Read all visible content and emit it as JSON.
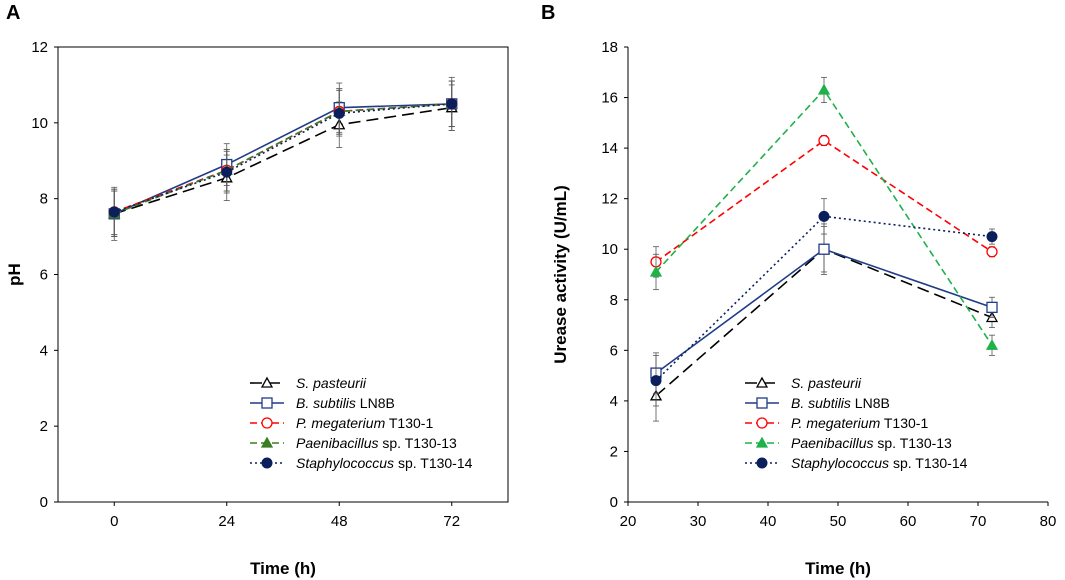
{
  "panels": [
    {
      "letter": "A",
      "chart_data": {
        "type": "line",
        "xlabel": "Time (h)",
        "ylabel": "pH",
        "x_type": "categorical",
        "categories": [
          "0",
          "24",
          "48",
          "72"
        ],
        "ylim": [
          0,
          12
        ],
        "yticks": [
          "0",
          "2",
          "4",
          "6",
          "8",
          "10",
          "12"
        ],
        "grid": false,
        "legend_position": "bottom-right",
        "series": [
          {
            "name_italic": "S. pasteurii",
            "name_rest": "",
            "color": "#000000",
            "dash": "long-dash",
            "marker": "open-triangle",
            "x": [
              "0",
              "24",
              "48",
              "72"
            ],
            "values": [
              7.6,
              8.55,
              9.95,
              10.4
            ],
            "errors": [
              0.7,
              0.6,
              0.6,
              0.6
            ]
          },
          {
            "name_italic": "B. subtilis",
            "name_rest": " LN8B",
            "color": "#1f3c88",
            "dash": "solid",
            "marker": "open-square",
            "x": [
              "0",
              "24",
              "48",
              "72"
            ],
            "values": [
              7.6,
              8.9,
              10.4,
              10.5
            ],
            "errors": [
              0.6,
              0.55,
              0.65,
              0.7
            ]
          },
          {
            "name_italic": "P. megaterium",
            "name_rest": " T130-1",
            "color": "#ff0000",
            "dash": "dash",
            "marker": "open-circle",
            "x": [
              "0",
              "24",
              "48",
              "72"
            ],
            "values": [
              7.65,
              8.75,
              10.3,
              10.5
            ],
            "errors": [
              0.6,
              0.55,
              0.6,
              0.6
            ]
          },
          {
            "name_italic": "Paenibacillus",
            "name_rest": " sp. T130-13",
            "color": "#3a7d22",
            "dash": "dash",
            "marker": "filled-triangle",
            "x": [
              "0",
              "24",
              "48",
              "72"
            ],
            "values": [
              7.6,
              8.75,
              10.3,
              10.5
            ],
            "errors": [
              0.6,
              0.55,
              0.6,
              0.6
            ]
          },
          {
            "name_italic": "Staphylococcus",
            "name_rest": " sp. T130-14",
            "color": "#0a1f5c",
            "dash": "dot",
            "marker": "filled-circle",
            "x": [
              "0",
              "24",
              "48",
              "72"
            ],
            "values": [
              7.65,
              8.7,
              10.25,
              10.5
            ],
            "errors": [
              0.6,
              0.55,
              0.6,
              0.6
            ]
          }
        ]
      }
    },
    {
      "letter": "B",
      "chart_data": {
        "type": "line",
        "xlabel": "Time (h)",
        "ylabel": "Urease activity (U/mL)",
        "x_type": "numeric",
        "xlim": [
          20,
          80
        ],
        "xticks": [
          "20",
          "30",
          "40",
          "50",
          "60",
          "70",
          "80"
        ],
        "ylim": [
          0,
          18
        ],
        "yticks": [
          "0",
          "2",
          "4",
          "6",
          "8",
          "10",
          "12",
          "14",
          "16",
          "18"
        ],
        "grid": false,
        "legend_position": "bottom-center",
        "series": [
          {
            "name_italic": "S. pasteurii",
            "name_rest": "",
            "color": "#000000",
            "dash": "long-dash",
            "marker": "open-triangle",
            "x": [
              24,
              48,
              72
            ],
            "values": [
              4.2,
              10.0,
              7.3
            ],
            "errors": [
              1.0,
              1.0,
              0.4
            ]
          },
          {
            "name_italic": "B. subtilis",
            "name_rest": " LN8B",
            "color": "#1f3c88",
            "dash": "solid",
            "marker": "open-square",
            "x": [
              24,
              48,
              72
            ],
            "values": [
              5.1,
              10.0,
              7.7
            ],
            "errors": [
              0.8,
              0.9,
              0.4
            ]
          },
          {
            "name_italic": "P. megaterium",
            "name_rest": " T130-1",
            "color": "#ff0000",
            "dash": "dash",
            "marker": "open-circle",
            "x": [
              24,
              48,
              72
            ],
            "values": [
              9.5,
              14.3,
              9.9
            ],
            "errors": [
              0.6,
              0.2,
              0.2
            ]
          },
          {
            "name_italic": "Paenibacillus",
            "name_rest": " sp. T130-13",
            "color": "#1fb14a",
            "dash": "dash",
            "marker": "filled-triangle",
            "x": [
              24,
              48,
              72
            ],
            "values": [
              9.1,
              16.3,
              6.2
            ],
            "errors": [
              0.7,
              0.5,
              0.4
            ]
          },
          {
            "name_italic": "Staphylococcus",
            "name_rest": " sp. T130-14",
            "color": "#0a1f5c",
            "dash": "dot",
            "marker": "filled-circle",
            "x": [
              24,
              48,
              72
            ],
            "values": [
              4.8,
              11.3,
              10.5
            ],
            "errors": [
              1.0,
              0.7,
              0.3
            ]
          }
        ]
      }
    }
  ]
}
